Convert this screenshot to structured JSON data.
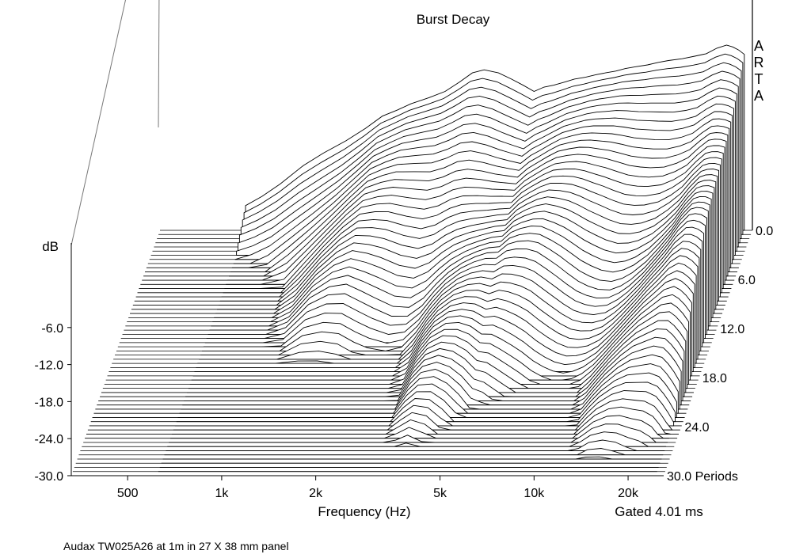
{
  "chart_data": {
    "type": "waterfall",
    "title": "Burst Decay",
    "xlabel": "Frequency (Hz)",
    "ylabel": "dB",
    "zlabel": "Periods",
    "x_scale": "log",
    "x_ticks": [
      {
        "value": 500,
        "label": "500"
      },
      {
        "value": 1000,
        "label": "1k"
      },
      {
        "value": 2000,
        "label": "2k"
      },
      {
        "value": 5000,
        "label": "5k"
      },
      {
        "value": 10000,
        "label": "10k"
      },
      {
        "value": 20000,
        "label": "20k"
      }
    ],
    "xlim": [
      330,
      26000
    ],
    "y_ticks": [
      "-6.0",
      "-12.0",
      "-18.0",
      "-24.0",
      "-30.0"
    ],
    "ylim": [
      -30,
      0
    ],
    "z_ticks": [
      {
        "value": 0,
        "label": "0.0"
      },
      {
        "value": 6,
        "label": "6.0"
      },
      {
        "value": 12,
        "label": "12.0"
      },
      {
        "value": 18,
        "label": "18.0"
      },
      {
        "value": 24,
        "label": "24.0"
      },
      {
        "value": 30,
        "label": "30.0 Periods"
      }
    ],
    "zlim": [
      0,
      30
    ],
    "slice_count": 60,
    "first_slice_profile": {
      "freq_hz": [
        620,
        700,
        800,
        950,
        1100,
        1300,
        1500,
        1700,
        1900,
        2100,
        2400,
        2700,
        3000,
        3300,
        3600,
        4000,
        4400,
        4800,
        5200,
        5600,
        6000,
        6500,
        7000,
        7600,
        8200,
        8800,
        9500,
        10200,
        11000,
        12000,
        13000,
        14000,
        15500,
        17000,
        18500,
        20000,
        21500,
        22500,
        23500,
        24500
      ],
      "db": [
        -26,
        -24.5,
        -22.5,
        -19.5,
        -17.5,
        -15.5,
        -13.5,
        -11.5,
        -10.5,
        -9.5,
        -8.5,
        -7.5,
        -6,
        -4.5,
        -4,
        -4.5,
        -5.5,
        -6.5,
        -7.5,
        -6.8,
        -6.5,
        -6,
        -5.5,
        -5.2,
        -4.8,
        -4.5,
        -4.2,
        -3.8,
        -3.5,
        -3.2,
        -2.8,
        -2.5,
        -2.2,
        -1.8,
        -1.4,
        -0.5,
        0,
        -0.3,
        -0.8,
        -1.5
      ]
    },
    "grid": false
  },
  "footer": {
    "gate_note": "Gated 4.01 ms",
    "caption": "Audax TW025A26 at 1m in 27 X 38 mm panel"
  },
  "watermark": "ARTA"
}
